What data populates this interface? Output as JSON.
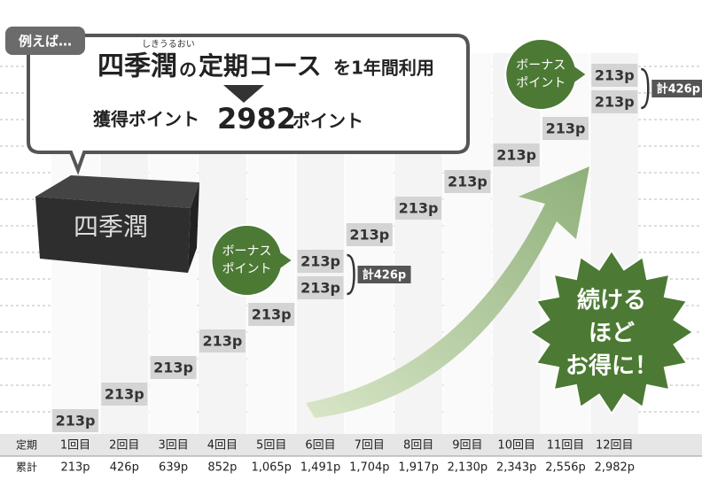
{
  "callout": {
    "tag": "例えば…",
    "ruby": "しきうるおい",
    "brand": "四季潤",
    "particle1": "の",
    "course": "定期コース",
    "rest": "を1年間利用",
    "gain_label": "獲得ポイント",
    "gain_value": "2982",
    "gain_unit": "ポイント"
  },
  "product": "四季潤",
  "bonus_badge": {
    "line1": "ボーナス",
    "line2": "ポイント"
  },
  "steps": [
    {
      "label": "213p"
    },
    {
      "label": "213p"
    },
    {
      "label": "213p"
    },
    {
      "label": "213p"
    },
    {
      "label": "213p"
    },
    {
      "label": "213p",
      "bonus": "213p",
      "total": "計426p"
    },
    {
      "label": "213p"
    },
    {
      "label": "213p"
    },
    {
      "label": "213p"
    },
    {
      "label": "213p"
    },
    {
      "label": "213p"
    },
    {
      "label": "213p",
      "bonus": "213p",
      "total": "計426p"
    }
  ],
  "starburst": [
    "続ける",
    "ほど",
    "お得に！"
  ],
  "table": {
    "rows": [
      [
        "定期",
        "1回目",
        "2回目",
        "3回目",
        "4回目",
        "5回目",
        "6回目",
        "7回目",
        "8回目",
        "9回目",
        "10回目",
        "11回目",
        "12回目"
      ],
      [
        "累計",
        "213p",
        "426p",
        "639p",
        "852p",
        "1,065p",
        "1,491p",
        "1,704p",
        "1,917p",
        "2,130p",
        "2,343p",
        "2,556p",
        "2,982p"
      ]
    ]
  }
}
